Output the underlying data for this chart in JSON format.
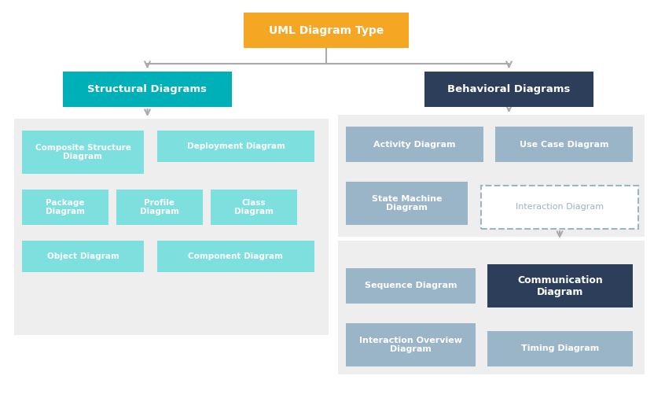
{
  "title": "UML Diagram Type",
  "title_color": "#ffffff",
  "title_bg": "#F5A623",
  "structural_label": "Structural Diagrams",
  "structural_bg": "#00B0B9",
  "behavioral_label": "Behavioral Diagrams",
  "behavioral_bg": "#2C3E5A",
  "structural_children": [
    {
      "label": "Composite Structure\nDiagram",
      "bg": "#7EEAEA"
    },
    {
      "label": "Deployment Diagram",
      "bg": "#7EEAEA"
    },
    {
      "label": "Package\nDiagram",
      "bg": "#7EEAEA"
    },
    {
      "label": "Profile\nDiagram",
      "bg": "#7EEAEA"
    },
    {
      "label": "Class\nDiagram",
      "bg": "#7EEAEA"
    },
    {
      "label": "Object Diagram",
      "bg": "#7EEAEA"
    },
    {
      "label": "Component Diagram",
      "bg": "#7EEAEA"
    }
  ],
  "behavioral_children_top": [
    {
      "label": "Activity Diagram",
      "bg": "#9BB5C8"
    },
    {
      "label": "Use Case Diagram",
      "bg": "#9BB5C8"
    },
    {
      "label": "State Machine\nDiagram",
      "bg": "#9BB5C8"
    }
  ],
  "interaction_label": "Interaction Diagram",
  "interaction_bg": "#ffffff",
  "interaction_border": "#9BB5C8",
  "interaction_children": [
    {
      "label": "Sequence Diagram",
      "bg": "#9BB5C8"
    },
    {
      "label": "Communication\nDiagram",
      "bg": "#2C3E5A",
      "text_color": "#ffffff",
      "bold": true
    },
    {
      "label": "Interaction Overview\nDiagram",
      "bg": "#9BB5C8"
    },
    {
      "label": "Timing Diagram",
      "bg": "#9BB5C8"
    }
  ],
  "bg_color": "#ffffff",
  "connector_color": "#aaaaaa",
  "group_bg": "#f0f0f0"
}
